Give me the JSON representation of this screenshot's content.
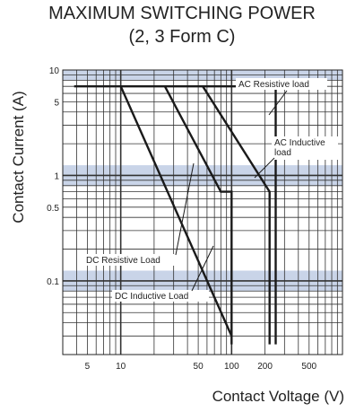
{
  "chart_data": {
    "type": "line",
    "title": "MAXIMUM SWITCHING POWER",
    "subtitle": "(2, 3 Form C)",
    "xlabel": "Contact Voltage (V)",
    "ylabel": "Contact Current (A)",
    "xscale": "log",
    "yscale": "log",
    "xlim": [
      3,
      1000
    ],
    "ylim": [
      0.02,
      10
    ],
    "xticks": [
      {
        "v": 5,
        "label": "5"
      },
      {
        "v": 10,
        "label": "10"
      },
      {
        "v": 50,
        "label": "50"
      },
      {
        "v": 100,
        "label": "100"
      },
      {
        "v": 200,
        "label": "200"
      },
      {
        "v": 500,
        "label": "500"
      }
    ],
    "yticks": [
      {
        "v": 10,
        "label": "10"
      },
      {
        "v": 5,
        "label": "5"
      },
      {
        "v": 1,
        "label": "1"
      },
      {
        "v": 0.5,
        "label": "0.5"
      },
      {
        "v": 0.1,
        "label": "0.1"
      }
    ],
    "grid": true,
    "series": [
      {
        "name": "AC Resistive load",
        "points": [
          [
            3.8,
            7
          ],
          [
            250,
            7
          ],
          [
            250,
            0.025
          ]
        ]
      },
      {
        "name": "AC Inductive load",
        "points": [
          [
            55,
            7
          ],
          [
            220,
            0.7
          ],
          [
            220,
            0.025
          ]
        ]
      },
      {
        "name": "DC Resistive Load",
        "points": [
          [
            10,
            7
          ],
          [
            100,
            0.03
          ]
        ]
      },
      {
        "name": "DC Inductive Load",
        "points": [
          [
            25,
            7
          ],
          [
            80,
            0.7
          ],
          [
            100,
            0.7
          ],
          [
            100,
            0.025
          ]
        ]
      }
    ],
    "annotations": [
      {
        "text": "AC Resistive load",
        "series": 0
      },
      {
        "text": "AC Inductive",
        "text2": "load",
        "series": 1
      },
      {
        "text": "DC Resistive Load",
        "series": 2
      },
      {
        "text": "DC Inductive Load",
        "series": 3
      }
    ]
  }
}
